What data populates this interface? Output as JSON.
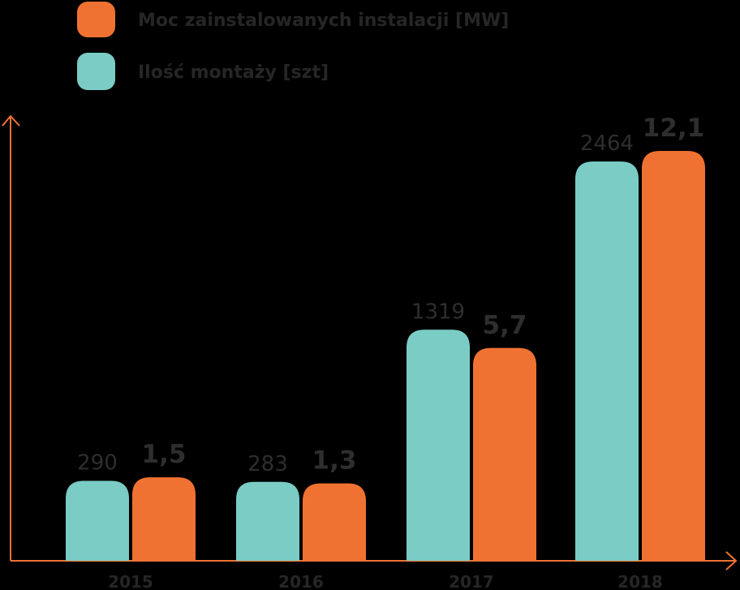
{
  "colors": {
    "orange": "#F07232",
    "teal": "#7ACCC5",
    "axis": "#F07232",
    "text": "#2e2e2e"
  },
  "chart_data": {
    "type": "bar",
    "categories": [
      "2015",
      "2016",
      "2017",
      "2018"
    ],
    "series": [
      {
        "name": "Ilość montaży [szt]",
        "values": [
          290,
          283,
          1319,
          2464
        ],
        "labels": [
          "290",
          "283",
          "1319",
          "2464"
        ],
        "color": "#7ACCC5"
      },
      {
        "name": "Moc zainstalowanych instalacji [MW]",
        "values": [
          1.5,
          1.3,
          5.7,
          12.1
        ],
        "labels": [
          "1,5",
          "1,3",
          "5,7",
          "12,1"
        ],
        "color": "#F07232"
      }
    ],
    "legend": [
      {
        "label": "Moc zainstalowanych instalacji [MW]",
        "color": "#F07232"
      },
      {
        "label": "Ilość montaży [szt]",
        "color": "#7ACCC5"
      }
    ],
    "legend_position": "top-left",
    "grid": false
  }
}
